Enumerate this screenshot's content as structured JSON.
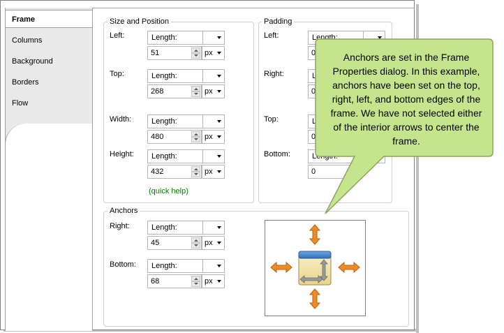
{
  "tabs": [
    {
      "label": "Frame",
      "active": true
    },
    {
      "label": "Columns",
      "active": false
    },
    {
      "label": "Background",
      "active": false
    },
    {
      "label": "Borders",
      "active": false
    },
    {
      "label": "Flow",
      "active": false
    }
  ],
  "size_position": {
    "legend": "Size and Position",
    "left": {
      "label": "Left:",
      "type": "Length:",
      "value": "51",
      "unit": "px"
    },
    "top": {
      "label": "Top:",
      "type": "Length:",
      "value": "268",
      "unit": "px"
    },
    "width": {
      "label": "Width:",
      "type": "Length:",
      "value": "480",
      "unit": "px"
    },
    "height": {
      "label": "Height:",
      "type": "Length:",
      "value": "432",
      "unit": "px"
    },
    "quick_help": "(quick help)"
  },
  "padding": {
    "legend": "Padding",
    "left": {
      "label": "Left:",
      "type": "Length:",
      "value": "0"
    },
    "right": {
      "label": "Right:",
      "type": "Length:",
      "value": "0"
    },
    "top": {
      "label": "Top:",
      "type": "Length:",
      "value": "0"
    },
    "bottom": {
      "label": "Bottom:",
      "type": "Length:",
      "value": "0"
    }
  },
  "anchors": {
    "legend": "Anchors",
    "right": {
      "label": "Right:",
      "type": "Length:",
      "value": "45",
      "unit": "px"
    },
    "bottom": {
      "label": "Bottom:",
      "type": "Length:",
      "value": "68",
      "unit": "px"
    }
  },
  "callout": {
    "text": "Anchors are set in the Frame Properties dialog. In this example, anchors have been set on the top, right, left, and bottom edges of the frame. We have not selected either of the interior arrows to center the frame."
  },
  "colors": {
    "callout_fill": "#c5e58c",
    "callout_border": "#8aa360",
    "arrow_orange": "#f08a24",
    "help_green": "#008000"
  }
}
